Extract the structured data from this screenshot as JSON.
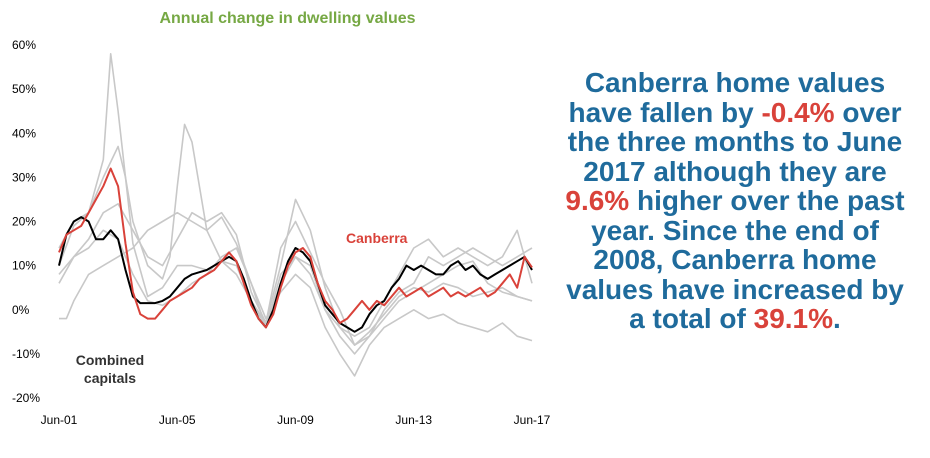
{
  "chart_data": {
    "type": "line",
    "title": "Annual change in dwelling values",
    "y_axis": {
      "ticks": [
        "60%",
        "50%",
        "40%",
        "30%",
        "20%",
        "10%",
        "0%",
        "-10%",
        "-20%"
      ],
      "ylim": [
        -20,
        60
      ],
      "unit": "%"
    },
    "x_axis": {
      "tick_labels": [
        "Jun-01",
        "Jun-05",
        "Jun-09",
        "Jun-13",
        "Jun-17"
      ],
      "tick_values": [
        2001.5,
        2005.5,
        2009.5,
        2013.5,
        2017.5
      ],
      "xlim": [
        2001.5,
        2017.5
      ]
    },
    "grid": false,
    "series": [
      {
        "name": "Canberra",
        "color": "#d9423a",
        "points": [
          [
            2001.5,
            13
          ],
          [
            2001.75,
            17
          ],
          [
            2002.0,
            18
          ],
          [
            2002.25,
            19
          ],
          [
            2002.5,
            22
          ],
          [
            2002.75,
            25
          ],
          [
            2003.0,
            28
          ],
          [
            2003.25,
            32
          ],
          [
            2003.5,
            28
          ],
          [
            2003.75,
            15
          ],
          [
            2004.0,
            4
          ],
          [
            2004.25,
            -1
          ],
          [
            2004.5,
            -2
          ],
          [
            2004.75,
            -2
          ],
          [
            2005.0,
            0
          ],
          [
            2005.25,
            2
          ],
          [
            2005.5,
            3
          ],
          [
            2005.75,
            4
          ],
          [
            2006.0,
            5
          ],
          [
            2006.25,
            7
          ],
          [
            2006.5,
            8
          ],
          [
            2006.75,
            9
          ],
          [
            2007.0,
            11
          ],
          [
            2007.25,
            13
          ],
          [
            2007.5,
            11
          ],
          [
            2007.75,
            6
          ],
          [
            2008.0,
            1
          ],
          [
            2008.25,
            -2
          ],
          [
            2008.5,
            -4
          ],
          [
            2008.75,
            -1
          ],
          [
            2009.0,
            5
          ],
          [
            2009.25,
            10
          ],
          [
            2009.5,
            13
          ],
          [
            2009.75,
            14
          ],
          [
            2010.0,
            12
          ],
          [
            2010.25,
            6
          ],
          [
            2010.5,
            2
          ],
          [
            2010.75,
            0
          ],
          [
            2011.0,
            -3
          ],
          [
            2011.25,
            -2
          ],
          [
            2011.5,
            0
          ],
          [
            2011.75,
            2
          ],
          [
            2012.0,
            0
          ],
          [
            2012.25,
            2
          ],
          [
            2012.5,
            1
          ],
          [
            2012.75,
            3
          ],
          [
            2013.0,
            5
          ],
          [
            2013.25,
            3
          ],
          [
            2013.5,
            4
          ],
          [
            2013.75,
            5
          ],
          [
            2014.0,
            3
          ],
          [
            2014.25,
            4
          ],
          [
            2014.5,
            5
          ],
          [
            2014.75,
            3
          ],
          [
            2015.0,
            4
          ],
          [
            2015.25,
            3
          ],
          [
            2015.5,
            4
          ],
          [
            2015.75,
            5
          ],
          [
            2016.0,
            3
          ],
          [
            2016.25,
            4
          ],
          [
            2016.5,
            6
          ],
          [
            2016.75,
            8
          ],
          [
            2017.0,
            5
          ],
          [
            2017.25,
            12
          ],
          [
            2017.5,
            9.6
          ]
        ]
      },
      {
        "name": "Combined capitals",
        "color": "#000000",
        "points": [
          [
            2001.5,
            10
          ],
          [
            2001.75,
            17
          ],
          [
            2002.0,
            20
          ],
          [
            2002.25,
            21
          ],
          [
            2002.5,
            20
          ],
          [
            2002.75,
            16
          ],
          [
            2003.0,
            16
          ],
          [
            2003.25,
            18
          ],
          [
            2003.5,
            16
          ],
          [
            2003.75,
            9
          ],
          [
            2004.0,
            3
          ],
          [
            2004.25,
            1.5
          ],
          [
            2004.5,
            1.5
          ],
          [
            2004.75,
            1.5
          ],
          [
            2005.0,
            2
          ],
          [
            2005.25,
            3
          ],
          [
            2005.5,
            5
          ],
          [
            2005.75,
            7
          ],
          [
            2006.0,
            8
          ],
          [
            2006.25,
            8.5
          ],
          [
            2006.5,
            9
          ],
          [
            2006.75,
            10
          ],
          [
            2007.0,
            11
          ],
          [
            2007.25,
            12
          ],
          [
            2007.5,
            11
          ],
          [
            2007.75,
            7
          ],
          [
            2008.0,
            2
          ],
          [
            2008.25,
            -2
          ],
          [
            2008.5,
            -4
          ],
          [
            2008.75,
            0
          ],
          [
            2009.0,
            6
          ],
          [
            2009.25,
            11
          ],
          [
            2009.5,
            14
          ],
          [
            2009.75,
            13
          ],
          [
            2010.0,
            11
          ],
          [
            2010.25,
            6
          ],
          [
            2010.5,
            1
          ],
          [
            2010.75,
            -1
          ],
          [
            2011.0,
            -3
          ],
          [
            2011.25,
            -4
          ],
          [
            2011.5,
            -5
          ],
          [
            2011.75,
            -4
          ],
          [
            2012.0,
            -1
          ],
          [
            2012.25,
            1
          ],
          [
            2012.5,
            2
          ],
          [
            2012.75,
            5
          ],
          [
            2013.0,
            7
          ],
          [
            2013.25,
            10
          ],
          [
            2013.5,
            9
          ],
          [
            2013.75,
            10
          ],
          [
            2014.0,
            9
          ],
          [
            2014.25,
            8
          ],
          [
            2014.5,
            8
          ],
          [
            2014.75,
            10
          ],
          [
            2015.0,
            11
          ],
          [
            2015.25,
            9
          ],
          [
            2015.5,
            10
          ],
          [
            2015.75,
            8
          ],
          [
            2016.0,
            7
          ],
          [
            2016.25,
            8
          ],
          [
            2016.5,
            9
          ],
          [
            2016.75,
            10
          ],
          [
            2017.0,
            11
          ],
          [
            2017.25,
            12
          ],
          [
            2017.5,
            9
          ]
        ]
      },
      {
        "color": "#c8c8c8",
        "points": [
          [
            2001.5,
            14
          ],
          [
            2002.0,
            20
          ],
          [
            2002.5,
            22
          ],
          [
            2003.0,
            34
          ],
          [
            2003.25,
            58
          ],
          [
            2003.5,
            45
          ],
          [
            2004.0,
            15
          ],
          [
            2004.5,
            3
          ],
          [
            2005.0,
            5
          ],
          [
            2005.5,
            10
          ],
          [
            2006.0,
            10
          ],
          [
            2006.5,
            9
          ],
          [
            2007.0,
            11
          ],
          [
            2007.5,
            10
          ],
          [
            2008.0,
            2
          ],
          [
            2008.5,
            -4
          ],
          [
            2009.0,
            8
          ],
          [
            2009.5,
            12
          ],
          [
            2010.0,
            10
          ],
          [
            2010.5,
            0
          ],
          [
            2011.0,
            -6
          ],
          [
            2011.5,
            -10
          ],
          [
            2012.0,
            -6
          ],
          [
            2012.5,
            -2
          ],
          [
            2013.0,
            2
          ],
          [
            2013.5,
            4
          ],
          [
            2014.0,
            6
          ],
          [
            2014.5,
            8
          ],
          [
            2015.0,
            10
          ],
          [
            2015.5,
            11
          ],
          [
            2016.0,
            6
          ],
          [
            2016.5,
            4
          ],
          [
            2017.0,
            3
          ],
          [
            2017.5,
            2
          ]
        ]
      },
      {
        "color": "#c8c8c8",
        "points": [
          [
            2001.5,
            10
          ],
          [
            2002.0,
            19
          ],
          [
            2002.5,
            22
          ],
          [
            2003.0,
            30
          ],
          [
            2003.5,
            37
          ],
          [
            2003.75,
            30
          ],
          [
            2004.0,
            20
          ],
          [
            2004.5,
            10
          ],
          [
            2005.0,
            7
          ],
          [
            2005.25,
            12
          ],
          [
            2005.5,
            28
          ],
          [
            2005.75,
            42
          ],
          [
            2006.0,
            38
          ],
          [
            2006.5,
            18
          ],
          [
            2007.0,
            11
          ],
          [
            2007.5,
            8
          ],
          [
            2008.0,
            2
          ],
          [
            2008.5,
            -3
          ],
          [
            2009.0,
            10
          ],
          [
            2009.5,
            25
          ],
          [
            2010.0,
            18
          ],
          [
            2010.5,
            5
          ],
          [
            2011.0,
            -4
          ],
          [
            2011.5,
            -8
          ],
          [
            2012.0,
            -6
          ],
          [
            2012.5,
            0
          ],
          [
            2013.0,
            4
          ],
          [
            2013.5,
            6
          ],
          [
            2014.0,
            12
          ],
          [
            2014.5,
            10
          ],
          [
            2015.0,
            12
          ],
          [
            2015.5,
            14
          ],
          [
            2016.0,
            12
          ],
          [
            2016.5,
            10
          ],
          [
            2017.0,
            12
          ],
          [
            2017.5,
            14
          ]
        ]
      },
      {
        "color": "#c8c8c8",
        "points": [
          [
            2001.5,
            6
          ],
          [
            2002.0,
            12
          ],
          [
            2002.5,
            16
          ],
          [
            2003.0,
            22
          ],
          [
            2003.5,
            24
          ],
          [
            2004.0,
            18
          ],
          [
            2004.5,
            12
          ],
          [
            2005.0,
            10
          ],
          [
            2005.5,
            16
          ],
          [
            2006.0,
            22
          ],
          [
            2006.5,
            20
          ],
          [
            2007.0,
            22
          ],
          [
            2007.5,
            17
          ],
          [
            2008.0,
            4
          ],
          [
            2008.5,
            -3
          ],
          [
            2009.0,
            14
          ],
          [
            2009.5,
            20
          ],
          [
            2010.0,
            13
          ],
          [
            2010.5,
            6
          ],
          [
            2011.0,
            0
          ],
          [
            2011.5,
            -8
          ],
          [
            2012.0,
            -5
          ],
          [
            2012.5,
            -1
          ],
          [
            2013.0,
            3
          ],
          [
            2013.5,
            5
          ],
          [
            2014.0,
            4
          ],
          [
            2014.5,
            6
          ],
          [
            2015.0,
            5
          ],
          [
            2015.5,
            3
          ],
          [
            2016.0,
            4
          ],
          [
            2016.5,
            5
          ],
          [
            2017.0,
            3
          ],
          [
            2017.5,
            2
          ]
        ]
      },
      {
        "color": "#c8c8c8",
        "points": [
          [
            2001.5,
            -2
          ],
          [
            2001.75,
            -2
          ],
          [
            2002.0,
            2
          ],
          [
            2002.5,
            8
          ],
          [
            2003.0,
            10
          ],
          [
            2003.5,
            12
          ],
          [
            2004.0,
            14
          ],
          [
            2004.5,
            18
          ],
          [
            2005.0,
            20
          ],
          [
            2005.5,
            22
          ],
          [
            2006.0,
            20
          ],
          [
            2006.5,
            18
          ],
          [
            2007.0,
            21
          ],
          [
            2007.5,
            15
          ],
          [
            2008.0,
            6
          ],
          [
            2008.5,
            -2
          ],
          [
            2009.0,
            4
          ],
          [
            2009.5,
            8
          ],
          [
            2010.0,
            5
          ],
          [
            2010.5,
            -4
          ],
          [
            2011.0,
            -10
          ],
          [
            2011.5,
            -15
          ],
          [
            2012.0,
            -8
          ],
          [
            2012.5,
            -4
          ],
          [
            2013.0,
            -2
          ],
          [
            2013.5,
            0
          ],
          [
            2014.0,
            -2
          ],
          [
            2014.5,
            -1
          ],
          [
            2015.0,
            -3
          ],
          [
            2015.5,
            -4
          ],
          [
            2016.0,
            -5
          ],
          [
            2016.5,
            -3
          ],
          [
            2017.0,
            -6
          ],
          [
            2017.5,
            -7
          ]
        ]
      },
      {
        "color": "#c8c8c8",
        "points": [
          [
            2001.5,
            8
          ],
          [
            2002.0,
            12
          ],
          [
            2002.5,
            14
          ],
          [
            2003.0,
            18
          ],
          [
            2003.5,
            16
          ],
          [
            2004.0,
            8
          ],
          [
            2004.5,
            2
          ],
          [
            2005.0,
            1
          ],
          [
            2005.5,
            3
          ],
          [
            2006.0,
            6
          ],
          [
            2006.5,
            8
          ],
          [
            2007.0,
            12
          ],
          [
            2007.5,
            14
          ],
          [
            2008.0,
            6
          ],
          [
            2008.5,
            -4
          ],
          [
            2009.0,
            6
          ],
          [
            2009.5,
            12
          ],
          [
            2010.0,
            8
          ],
          [
            2010.5,
            0
          ],
          [
            2011.0,
            -4
          ],
          [
            2011.5,
            -6
          ],
          [
            2012.0,
            -4
          ],
          [
            2012.5,
            2
          ],
          [
            2013.0,
            8
          ],
          [
            2013.5,
            14
          ],
          [
            2014.0,
            16
          ],
          [
            2014.5,
            12
          ],
          [
            2015.0,
            14
          ],
          [
            2015.5,
            12
          ],
          [
            2016.0,
            10
          ],
          [
            2016.5,
            12
          ],
          [
            2017.0,
            18
          ],
          [
            2017.5,
            6
          ]
        ]
      }
    ],
    "annotations": {
      "canberra_label": "Canberra",
      "combined_label_line1": "Combined",
      "combined_label_line2": "capitals"
    }
  },
  "headline": {
    "part1": "Canberra home values have fallen by ",
    "value1": "-0.4%",
    "part2": " over the three months to June 2017 although they are ",
    "value2": "9.6%",
    "part3": " higher over the past year. Since the end of 2008, Canberra home values have increased by a total of ",
    "value3": "39.1%",
    "part4": "."
  }
}
